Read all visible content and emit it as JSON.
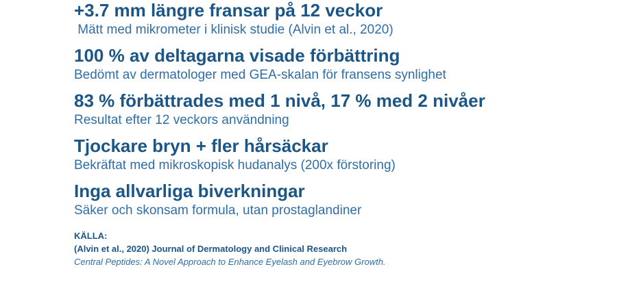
{
  "page": {
    "background_color": "#ffffff",
    "heading_color": "#1b5687",
    "subtext_color": "#2f6ea6"
  },
  "claims": [
    {
      "heading": "+3.7 mm längre fransar på 12 veckor",
      "subtext": " Mätt med mikrometer i klinisk studie (Alvin et al., 2020)"
    },
    {
      "heading": "100 % av deltagarna visade förbättring",
      "subtext": "Bedömt av dermatologer med GEA-skalan för fransens synlighet"
    },
    {
      "heading": "83 % förbättrades med 1 nivå, 17 % med 2 nivåer",
      "subtext": "Resultat efter 12 veckors användning"
    },
    {
      "heading": "Tjockare bryn + fler hårsäckar",
      "subtext": "Bekräftat med mikroskopisk hudanalys (200x förstoring)"
    },
    {
      "heading": "Inga allvarliga biverkningar",
      "subtext": "Säker och skonsam formula, utan prostaglandiner"
    }
  ],
  "source": {
    "label": "KÄLLA:",
    "citation": "(Alvin et al., 2020) Journal of Dermatology and Clinical Research",
    "study_title": "Central Peptides: A Novel Approach to Enhance Eyelash and Eyebrow Growth."
  }
}
